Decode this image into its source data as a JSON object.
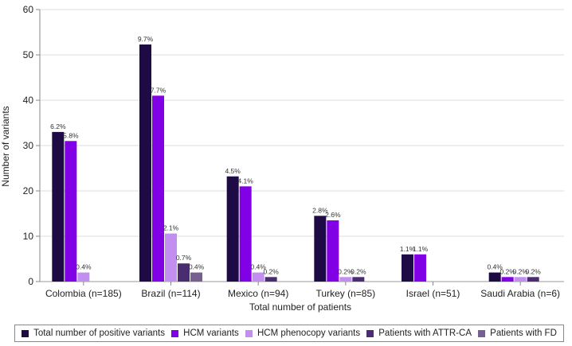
{
  "chart_data": {
    "type": "bar",
    "xlabel": "Total number of patients",
    "ylabel": "Number of variants",
    "ylim": [
      0,
      60
    ],
    "yticks": [
      0,
      10,
      20,
      30,
      40,
      50,
      60
    ],
    "grid": true,
    "legend_position": "bottom",
    "categories": [
      "Colombia (n=185)",
      "Brazil (n=114)",
      "Mexico (n=94)",
      "Turkey (n=85)",
      "Israel (n=51)",
      "Saudi Arabia (n=6)"
    ],
    "series": [
      {
        "name": "Total number of positive variants",
        "color": "#1e0a44",
        "values": [
          33,
          52.3,
          23.2,
          14.5,
          6,
          2
        ],
        "labels": [
          "6.2%",
          "9.7%",
          "4.5%",
          "2.8%",
          "1.1%",
          "0.4%"
        ]
      },
      {
        "name": "HCM variants",
        "color": "#8200e6",
        "values": [
          31,
          41,
          21,
          13.5,
          6,
          1
        ],
        "labels": [
          "5.8%",
          "7.7%",
          "4.1%",
          "2.6%",
          "1.1%",
          "0.2%"
        ]
      },
      {
        "name": "HCM phenocopy variants",
        "color": "#c28ef0",
        "values": [
          2,
          10.6,
          2,
          1,
          0,
          1
        ],
        "labels": [
          "0.4%",
          "2.1%",
          "0.4%",
          "0.2%",
          "",
          "0.2%"
        ]
      },
      {
        "name": "Patients with ATTR-CA",
        "color": "#4a2d70",
        "values": [
          0,
          4,
          1,
          1,
          0,
          1
        ],
        "labels": [
          "",
          "0.7%",
          "0.2%",
          "0.2%",
          "",
          "0.2%"
        ]
      },
      {
        "name": "Patients with FD",
        "color": "#75608f",
        "values": [
          0,
          2,
          0,
          0,
          0,
          0
        ],
        "labels": [
          "",
          "0.4%",
          "",
          "",
          "",
          ""
        ]
      }
    ]
  }
}
